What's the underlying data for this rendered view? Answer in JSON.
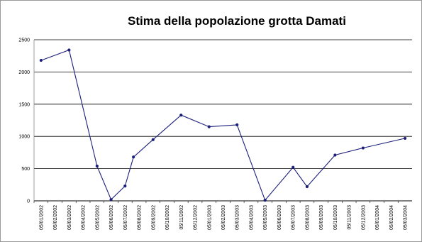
{
  "chart_data": {
    "type": "line",
    "title": "Stima della popolazione grotta Damati",
    "xlabel": "",
    "ylabel": "",
    "ylim": [
      0,
      2500
    ],
    "yticks": [
      0,
      500,
      1000,
      1500,
      2000,
      2500
    ],
    "grid": "horizontal",
    "legend": "none",
    "x": [
      "05/01/2002",
      "05/02/2002",
      "05/03/2002",
      "05/04/2002",
      "05/05/2002",
      "05/06/2002",
      "05/07/2002",
      "05/08/2002",
      "05/09/2002",
      "05/10/2002",
      "05/11/2002",
      "05/12/2002",
      "05/01/2003",
      "05/02/2003",
      "05/03/2003",
      "05/04/2003",
      "05/05/2003",
      "05/06/2003",
      "05/07/2003",
      "05/08/2003",
      "05/09/2003",
      "05/10/2003",
      "05/11/2003",
      "05/12/2003",
      "05/01/2004",
      "05/02/2004",
      "05/03/2004"
    ],
    "series": [
      {
        "name": "",
        "color": "#1c1f7a",
        "points": [
          [
            "05/01/2002",
            2180
          ],
          [
            "05/03/2002",
            2340
          ],
          [
            "05/05/2002",
            540
          ],
          [
            "05/06/2002",
            20
          ],
          [
            "05/07/2002",
            230
          ],
          [
            "05/07/2002b",
            680
          ],
          [
            "05/09/2002",
            950
          ],
          [
            "05/11/2002",
            1330
          ],
          [
            "05/01/2003",
            1150
          ],
          [
            "05/03/2003",
            1180
          ],
          [
            "05/05/2003",
            10
          ],
          [
            "05/07/2003",
            520
          ],
          [
            "05/08/2003",
            220
          ],
          [
            "05/10/2003",
            710
          ],
          [
            "05/12/2003",
            820
          ],
          [
            "05/03/2004",
            970
          ]
        ]
      }
    ]
  }
}
